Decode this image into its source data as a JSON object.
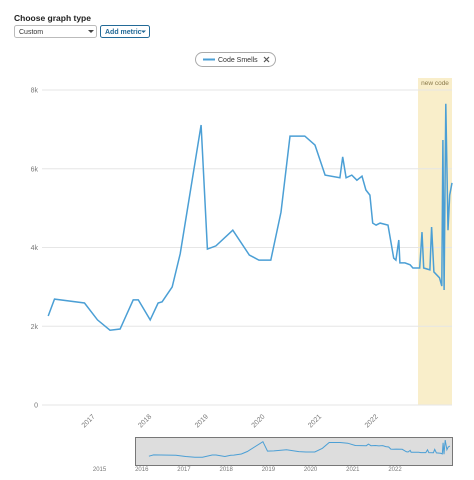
{
  "controls": {
    "graph_type_label": "Choose graph type",
    "graph_type": "Custom",
    "add_metric": "Add metric"
  },
  "chart_data": {
    "type": "line",
    "x": [
      2016.17,
      2016.28,
      2016.81,
      2017.04,
      2017.26,
      2017.44,
      2017.67,
      2017.76,
      2017.97,
      2018.11,
      2018.18,
      2018.36,
      2018.5,
      2018.87,
      2018.98,
      2019.13,
      2019.43,
      2019.72,
      2019.89,
      2020.1,
      2020.28,
      2020.44,
      2020.7,
      2020.88,
      2021.06,
      2021.32,
      2021.37,
      2021.43,
      2021.53,
      2021.62,
      2021.71,
      2021.78,
      2021.85,
      2021.9,
      2021.96,
      2022.03,
      2022.17,
      2022.27,
      2022.31,
      2022.36,
      2022.38,
      2022.47,
      2022.56,
      2022.61,
      2022.73,
      2022.77,
      2022.8,
      2022.91,
      2022.94,
      2022.98,
      2023.08,
      2023.12,
      2023.14,
      2023.16,
      2023.19,
      2023.23,
      2023.26,
      2023.3
    ],
    "series": [
      {
        "name": "Code Smells",
        "color": "#4b9fd5",
        "values": [
          2260,
          2690,
          2590,
          2160,
          1900,
          1930,
          2670,
          2670,
          2160,
          2590,
          2620,
          3000,
          3840,
          7110,
          3960,
          4040,
          4440,
          3810,
          3680,
          3680,
          4900,
          6830,
          6830,
          6600,
          5840,
          5770,
          6300,
          5770,
          5840,
          5710,
          5810,
          5460,
          5330,
          4620,
          4570,
          4620,
          4570,
          3730,
          3680,
          4190,
          3610,
          3610,
          3560,
          3480,
          3480,
          4390,
          3480,
          3430,
          4520,
          3380,
          3230,
          3020,
          6730,
          2920,
          7650,
          4440,
          5330,
          5640
        ]
      }
    ],
    "xlim": [
      2016.06,
      2023.3
    ],
    "xticks": [
      2017,
      2018,
      2019,
      2020,
      2021,
      2022
    ],
    "ylim": [
      0,
      8000
    ],
    "yticks": [
      0,
      {
        "value": 2000,
        "label": "2k"
      },
      {
        "value": 4000,
        "label": "4k"
      },
      {
        "value": 6000,
        "label": "6k"
      },
      {
        "value": 8000,
        "label": "8k"
      }
    ],
    "grid": true,
    "new_code": {
      "start": 2022.7,
      "label": "new code",
      "color": "#f6e7b4"
    },
    "overview": {
      "xlim": [
        2014.3,
        2023.35
      ],
      "xticks": [
        2015,
        2016,
        2017,
        2018,
        2019,
        2020,
        2021,
        2022
      ]
    }
  }
}
